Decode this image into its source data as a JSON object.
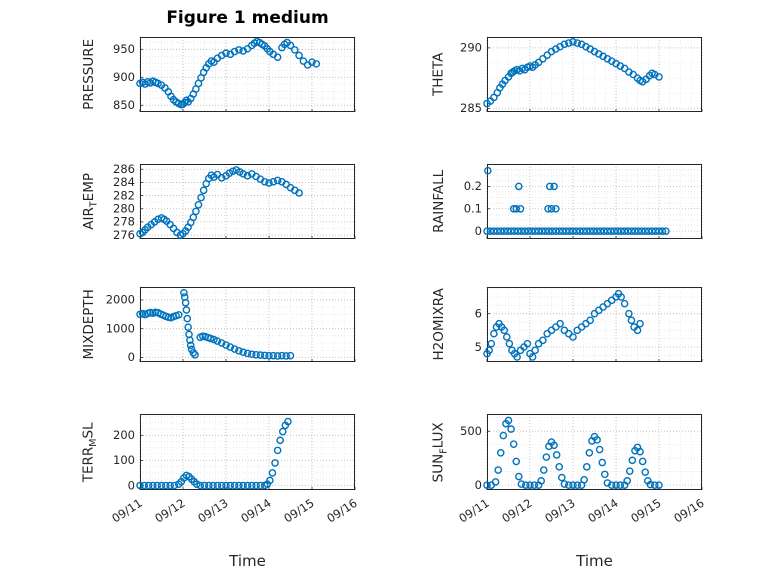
{
  "title": "Figure 1 medium",
  "xaxis_label": "Time",
  "colors": {
    "marker": "#0072BD",
    "axis": "#262626",
    "text": "#262626",
    "grid_major": "#b5b5b5",
    "grid_minor": "#e4e4e4",
    "background": "#ffffff"
  },
  "chart_data": [
    {
      "type": "scatter",
      "name": "PRESSURE",
      "ylabel": {
        "pre": "PRESSURE",
        "sub": "",
        "post": ""
      },
      "x_unit": "days since 09/11",
      "xlim": [
        0,
        5
      ],
      "xticks": [
        0,
        1,
        2,
        3,
        4,
        5
      ],
      "xtick_labels": [
        "09/11",
        "09/12",
        "09/13",
        "09/14",
        "09/15",
        "09/16"
      ],
      "xticklabels_visible": false,
      "ylim": [
        838,
        972
      ],
      "yticks": [
        850,
        900,
        950
      ],
      "ytick_labels": [
        "850",
        "900",
        "950"
      ],
      "x": [
        0,
        0.06,
        0.12,
        0.18,
        0.24,
        0.3,
        0.36,
        0.42,
        0.5,
        0.58,
        0.66,
        0.72,
        0.78,
        0.84,
        0.9,
        0.96,
        1.0,
        1.04,
        1.08,
        1.12,
        1.18,
        1.24,
        1.3,
        1.36,
        1.42,
        1.48,
        1.54,
        1.6,
        1.66,
        1.72,
        1.8,
        1.9,
        2.0,
        2.1,
        2.2,
        2.3,
        2.4,
        2.5,
        2.6,
        2.66,
        2.72,
        2.78,
        2.84,
        2.9,
        2.96,
        3.02,
        3.1,
        3.2,
        3.3,
        3.36,
        3.42,
        3.5,
        3.6,
        3.7,
        3.8,
        3.9,
        4.0,
        4.1
      ],
      "y": [
        889,
        891,
        888,
        892,
        890,
        893,
        891,
        889,
        886,
        881,
        874,
        866,
        860,
        856,
        853,
        851,
        852,
        855,
        859,
        856,
        862,
        870,
        879,
        889,
        899,
        909,
        917,
        924,
        929,
        927,
        934,
        939,
        943,
        941,
        946,
        949,
        947,
        951,
        957,
        961,
        964,
        962,
        959,
        956,
        951,
        946,
        941,
        936,
        953,
        959,
        962,
        957,
        949,
        939,
        929,
        922,
        927,
        924
      ]
    },
    {
      "type": "scatter",
      "name": "THETA",
      "ylabel": {
        "pre": "THETA",
        "sub": "",
        "post": ""
      },
      "x_unit": "days since 09/11",
      "xlim": [
        0,
        5
      ],
      "xticks": [
        0,
        1,
        2,
        3,
        4,
        5
      ],
      "xtick_labels": [
        "09/11",
        "09/12",
        "09/13",
        "09/14",
        "09/15",
        "09/16"
      ],
      "xticklabels_visible": false,
      "ylim": [
        284.7,
        290.9
      ],
      "yticks": [
        285,
        290
      ],
      "ytick_labels": [
        "285",
        "290"
      ],
      "x": [
        0,
        0.08,
        0.16,
        0.24,
        0.3,
        0.36,
        0.42,
        0.5,
        0.56,
        0.6,
        0.64,
        0.7,
        0.76,
        0.82,
        0.88,
        0.94,
        1.0,
        1.06,
        1.12,
        1.2,
        1.3,
        1.4,
        1.5,
        1.6,
        1.7,
        1.8,
        1.9,
        2.0,
        2.1,
        2.2,
        2.3,
        2.4,
        2.5,
        2.6,
        2.7,
        2.8,
        2.9,
        3.0,
        3.1,
        3.2,
        3.3,
        3.4,
        3.5,
        3.56,
        3.62,
        3.7,
        3.78,
        3.84,
        3.9,
        4.0
      ],
      "y": [
        285.4,
        285.6,
        285.9,
        286.3,
        286.7,
        287.0,
        287.3,
        287.6,
        287.9,
        288.0,
        288.1,
        288.2,
        288.1,
        288.3,
        288.2,
        288.4,
        288.5,
        288.4,
        288.6,
        288.8,
        289.1,
        289.4,
        289.7,
        289.9,
        290.1,
        290.3,
        290.4,
        290.5,
        290.4,
        290.3,
        290.1,
        289.9,
        289.7,
        289.5,
        289.3,
        289.1,
        288.9,
        288.7,
        288.5,
        288.3,
        288.0,
        287.8,
        287.5,
        287.3,
        287.2,
        287.4,
        287.7,
        287.9,
        287.8,
        287.6
      ]
    },
    {
      "type": "scatter",
      "name": "AIR_TEMP",
      "ylabel": {
        "pre": "AIR",
        "sub": "T",
        "post": "EMP"
      },
      "x_unit": "days since 09/11",
      "xlim": [
        0,
        5
      ],
      "xticks": [
        0,
        1,
        2,
        3,
        4,
        5
      ],
      "xtick_labels": [
        "09/11",
        "09/12",
        "09/13",
        "09/14",
        "09/15",
        "09/16"
      ],
      "xticklabels_visible": false,
      "ylim": [
        275.4,
        286.8
      ],
      "yticks": [
        276,
        278,
        280,
        282,
        284,
        286
      ],
      "ytick_labels": [
        "276",
        "278",
        "280",
        "282",
        "284",
        "286"
      ],
      "x": [
        0,
        0.06,
        0.12,
        0.18,
        0.26,
        0.34,
        0.42,
        0.5,
        0.56,
        0.62,
        0.7,
        0.78,
        0.86,
        0.94,
        1.0,
        1.06,
        1.12,
        1.18,
        1.24,
        1.3,
        1.36,
        1.42,
        1.48,
        1.54,
        1.6,
        1.66,
        1.72,
        1.8,
        1.9,
        2.0,
        2.08,
        2.16,
        2.24,
        2.32,
        2.4,
        2.5,
        2.6,
        2.7,
        2.8,
        2.9,
        3.0,
        3.1,
        3.2,
        3.3,
        3.4,
        3.5,
        3.6,
        3.7
      ],
      "y": [
        276.2,
        276.4,
        276.8,
        277.2,
        277.6,
        278.0,
        278.4,
        278.6,
        278.4,
        278.1,
        277.6,
        277.0,
        276.4,
        276.0,
        276.2,
        276.6,
        277.2,
        277.9,
        278.7,
        279.6,
        280.6,
        281.7,
        282.8,
        283.8,
        284.6,
        285.1,
        284.8,
        285.2,
        284.7,
        285.0,
        285.4,
        285.7,
        285.9,
        285.6,
        285.3,
        285.0,
        285.3,
        284.9,
        284.5,
        284.1,
        283.9,
        284.1,
        284.3,
        284.1,
        283.7,
        283.2,
        282.8,
        282.4
      ]
    },
    {
      "type": "scatter",
      "name": "RAINFALL",
      "ylabel": {
        "pre": "RAINFALL",
        "sub": "",
        "post": ""
      },
      "x_unit": "days since 09/11",
      "xlim": [
        0,
        5
      ],
      "xticks": [
        0,
        1,
        2,
        3,
        4,
        5
      ],
      "xtick_labels": [
        "09/11",
        "09/12",
        "09/13",
        "09/14",
        "09/15",
        "09/16"
      ],
      "xticklabels_visible": false,
      "ylim": [
        -0.035,
        0.3
      ],
      "yticks": [
        0,
        0.1,
        0.2
      ],
      "ytick_labels": [
        "0",
        "0.1",
        "0.2"
      ],
      "x": [
        0,
        0.08,
        0.16,
        0.24,
        0.32,
        0.4,
        0.48,
        0.56,
        0.64,
        0.72,
        0.8,
        0.88,
        0.96,
        1.04,
        1.12,
        1.2,
        1.28,
        1.36,
        1.44,
        1.52,
        1.6,
        1.68,
        1.76,
        1.84,
        1.92,
        2.0,
        2.08,
        2.16,
        2.24,
        2.32,
        2.4,
        2.48,
        2.56,
        2.64,
        2.72,
        2.8,
        2.88,
        2.96,
        3.04,
        3.12,
        3.2,
        3.28,
        3.36,
        3.44,
        3.52,
        3.6,
        3.68,
        3.76,
        3.84,
        3.92,
        4.0,
        4.08,
        4.16,
        0.02,
        0.62,
        0.68,
        0.74,
        0.78,
        1.42,
        1.46,
        1.5,
        1.56,
        1.6
      ],
      "y": [
        0,
        0,
        0,
        0,
        0,
        0,
        0,
        0,
        0,
        0,
        0,
        0,
        0,
        0,
        0,
        0,
        0,
        0,
        0,
        0,
        0,
        0,
        0,
        0,
        0,
        0,
        0,
        0,
        0,
        0,
        0,
        0,
        0,
        0,
        0,
        0,
        0,
        0,
        0,
        0,
        0,
        0,
        0,
        0,
        0,
        0,
        0,
        0,
        0,
        0,
        0,
        0,
        0,
        0.27,
        0.1,
        0.1,
        0.2,
        0.1,
        0.1,
        0.2,
        0.1,
        0.2,
        0.1
      ]
    },
    {
      "type": "scatter",
      "name": "MIXDEPTH",
      "ylabel": {
        "pre": "MIXDEPTH",
        "sub": "",
        "post": ""
      },
      "x_unit": "days since 09/11",
      "xlim": [
        0,
        5
      ],
      "xticks": [
        0,
        1,
        2,
        3,
        4,
        5
      ],
      "xtick_labels": [
        "09/11",
        "09/12",
        "09/13",
        "09/14",
        "09/15",
        "09/16"
      ],
      "xticklabels_visible": false,
      "ylim": [
        -160,
        2450
      ],
      "yticks": [
        0,
        1000,
        2000
      ],
      "ytick_labels": [
        "0",
        "1000",
        "2000"
      ],
      "x": [
        0,
        0.06,
        0.12,
        0.18,
        0.24,
        0.3,
        0.36,
        0.42,
        0.48,
        0.54,
        0.6,
        0.66,
        0.72,
        0.78,
        0.84,
        0.9,
        1.02,
        1.04,
        1.06,
        1.08,
        1.1,
        1.12,
        1.14,
        1.16,
        1.18,
        1.2,
        1.24,
        1.28,
        1.4,
        1.46,
        1.52,
        1.58,
        1.64,
        1.72,
        1.8,
        1.9,
        2.0,
        2.1,
        2.2,
        2.3,
        2.4,
        2.5,
        2.6,
        2.7,
        2.8,
        2.9,
        3.0,
        3.1,
        3.2,
        3.3,
        3.4,
        3.5
      ],
      "y": [
        1500,
        1520,
        1490,
        1530,
        1560,
        1540,
        1570,
        1550,
        1510,
        1470,
        1430,
        1400,
        1380,
        1420,
        1450,
        1480,
        2250,
        2100,
        1900,
        1650,
        1350,
        1050,
        800,
        600,
        420,
        280,
        160,
        90,
        700,
        740,
        720,
        690,
        660,
        620,
        570,
        500,
        430,
        360,
        290,
        230,
        180,
        140,
        110,
        90,
        80,
        70,
        60,
        60,
        50,
        60,
        50,
        60
      ]
    },
    {
      "type": "scatter",
      "name": "H2OMIXRA",
      "ylabel": {
        "pre": "H2OMIXRA",
        "sub": "",
        "post": ""
      },
      "x_unit": "days since 09/11",
      "xlim": [
        0,
        5
      ],
      "xticks": [
        0,
        1,
        2,
        3,
        4,
        5
      ],
      "xtick_labels": [
        "09/11",
        "09/12",
        "09/13",
        "09/14",
        "09/15",
        "09/16"
      ],
      "xticklabels_visible": false,
      "ylim": [
        4.55,
        6.8
      ],
      "yticks": [
        5,
        6
      ],
      "ytick_labels": [
        "5",
        "6"
      ],
      "x": [
        0,
        0.05,
        0.1,
        0.16,
        0.22,
        0.28,
        0.34,
        0.4,
        0.46,
        0.52,
        0.58,
        0.64,
        0.7,
        0.78,
        0.86,
        0.94,
        1.0,
        1.06,
        1.12,
        1.2,
        1.3,
        1.4,
        1.5,
        1.6,
        1.7,
        1.8,
        1.9,
        2.0,
        2.1,
        2.2,
        2.3,
        2.4,
        2.5,
        2.6,
        2.7,
        2.8,
        2.9,
        3.0,
        3.06,
        3.12,
        3.2,
        3.3,
        3.36,
        3.42,
        3.5,
        3.56
      ],
      "y": [
        4.8,
        4.9,
        5.1,
        5.4,
        5.6,
        5.7,
        5.6,
        5.5,
        5.3,
        5.1,
        4.9,
        4.8,
        4.7,
        4.9,
        5.0,
        5.1,
        4.8,
        4.7,
        4.9,
        5.1,
        5.2,
        5.4,
        5.5,
        5.6,
        5.7,
        5.5,
        5.4,
        5.3,
        5.5,
        5.6,
        5.7,
        5.8,
        6.0,
        6.1,
        6.2,
        6.3,
        6.4,
        6.5,
        6.6,
        6.5,
        6.3,
        6.0,
        5.8,
        5.6,
        5.5,
        5.7
      ]
    },
    {
      "type": "scatter",
      "name": "TERR_MSL",
      "ylabel": {
        "pre": "TERR",
        "sub": "M",
        "post": "SL"
      },
      "x_unit": "days since 09/11",
      "xlim": [
        0,
        5
      ],
      "xticks": [
        0,
        1,
        2,
        3,
        4,
        5
      ],
      "xtick_labels": [
        "09/11",
        "09/12",
        "09/13",
        "09/14",
        "09/15",
        "09/16"
      ],
      "xticklabels_visible": true,
      "ylim": [
        -18,
        285
      ],
      "yticks": [
        0,
        100,
        200
      ],
      "ytick_labels": [
        "0",
        "100",
        "200"
      ],
      "x": [
        0,
        0.1,
        0.2,
        0.3,
        0.4,
        0.5,
        0.6,
        0.7,
        0.8,
        0.9,
        0.96,
        1.02,
        1.08,
        1.14,
        1.2,
        1.26,
        1.32,
        1.4,
        1.5,
        1.6,
        1.7,
        1.8,
        1.9,
        2.0,
        2.1,
        2.2,
        2.3,
        2.4,
        2.5,
        2.6,
        2.7,
        2.8,
        2.9,
        2.96,
        3.02,
        3.08,
        3.14,
        3.2,
        3.26,
        3.32,
        3.38,
        3.44
      ],
      "y": [
        0,
        0,
        0,
        0,
        0,
        0,
        0,
        0,
        0,
        5,
        15,
        30,
        40,
        35,
        25,
        15,
        5,
        0,
        0,
        0,
        0,
        0,
        0,
        0,
        0,
        0,
        0,
        0,
        0,
        0,
        0,
        0,
        0,
        5,
        20,
        50,
        90,
        140,
        180,
        215,
        240,
        255
      ]
    },
    {
      "type": "scatter",
      "name": "SUN_FLUX",
      "ylabel": {
        "pre": "SUN",
        "sub": "F",
        "post": "LUX"
      },
      "x_unit": "days since 09/11",
      "xlim": [
        0,
        5
      ],
      "xticks": [
        0,
        1,
        2,
        3,
        4,
        5
      ],
      "xtick_labels": [
        "09/11",
        "09/12",
        "09/13",
        "09/14",
        "09/15",
        "09/16"
      ],
      "xticklabels_visible": true,
      "ylim": [
        -45,
        660
      ],
      "yticks": [
        0,
        500
      ],
      "ytick_labels": [
        "0",
        "500"
      ],
      "x": [
        0,
        0.1,
        0.2,
        0.26,
        0.32,
        0.38,
        0.44,
        0.5,
        0.56,
        0.62,
        0.68,
        0.74,
        0.8,
        0.9,
        1.0,
        1.1,
        1.2,
        1.26,
        1.32,
        1.38,
        1.44,
        1.5,
        1.56,
        1.62,
        1.68,
        1.74,
        1.8,
        1.9,
        2.0,
        2.1,
        2.2,
        2.26,
        2.32,
        2.38,
        2.44,
        2.5,
        2.56,
        2.62,
        2.68,
        2.74,
        2.8,
        2.9,
        3.0,
        3.1,
        3.2,
        3.26,
        3.32,
        3.38,
        3.44,
        3.5,
        3.56,
        3.62,
        3.68,
        3.74,
        3.8,
        3.9,
        4.0
      ],
      "y": [
        0,
        0,
        30,
        140,
        300,
        460,
        570,
        600,
        520,
        380,
        220,
        80,
        10,
        0,
        0,
        0,
        0,
        40,
        140,
        260,
        360,
        400,
        370,
        280,
        170,
        70,
        10,
        0,
        0,
        0,
        0,
        50,
        170,
        300,
        410,
        450,
        420,
        330,
        210,
        100,
        20,
        0,
        0,
        0,
        0,
        40,
        130,
        230,
        320,
        350,
        310,
        220,
        120,
        40,
        5,
        0,
        0
      ]
    }
  ]
}
